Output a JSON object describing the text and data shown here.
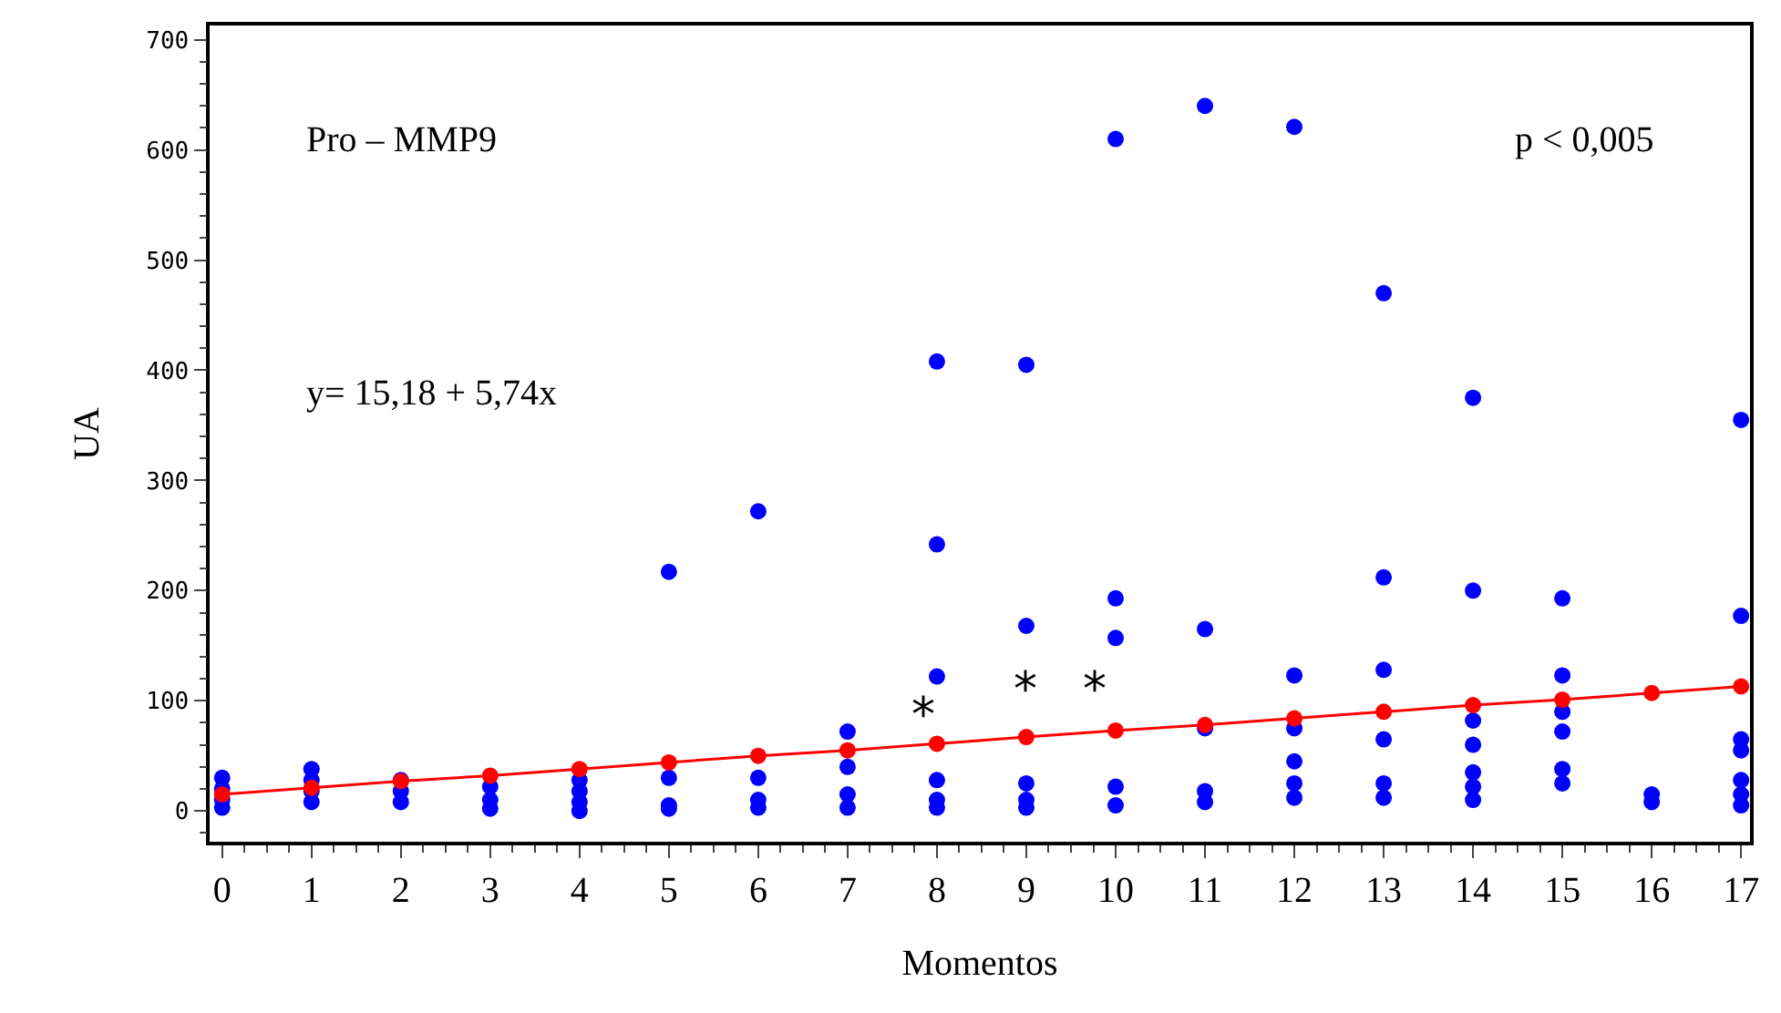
{
  "chart_data": {
    "type": "scatter",
    "xlabel": "Momentos",
    "ylabel": "UA",
    "xlim": [
      -0.14,
      17.1
    ],
    "ylim": [
      -28,
      713
    ],
    "xticks": [
      0,
      1,
      2,
      3,
      4,
      5,
      6,
      7,
      8,
      9,
      10,
      11,
      12,
      13,
      14,
      15,
      16,
      17
    ],
    "yticks": [
      0,
      100,
      200,
      300,
      400,
      500,
      600,
      700
    ],
    "grid": false,
    "marker": "circle",
    "series": [
      {
        "color": "#0000ff",
        "x": [
          0,
          0,
          0,
          0,
          1,
          1,
          1,
          1,
          2,
          2,
          2,
          3,
          3,
          3,
          4,
          4,
          4,
          4,
          5,
          5,
          5,
          5,
          6,
          6,
          6,
          6,
          7,
          7,
          7,
          7,
          8,
          8,
          8,
          8,
          8,
          8,
          9,
          9,
          9,
          9,
          9,
          10,
          10,
          10,
          10,
          10,
          11,
          11,
          11,
          11,
          11,
          12,
          12,
          12,
          12,
          12,
          12,
          13,
          13,
          13,
          13,
          13,
          13,
          14,
          14,
          14,
          14,
          14,
          14,
          14,
          15,
          15,
          15,
          15,
          15,
          15,
          16,
          16,
          17,
          17,
          17,
          17,
          17,
          17,
          17
        ],
        "values": [
          30,
          20,
          10,
          3,
          38,
          28,
          18,
          8,
          28,
          18,
          8,
          22,
          10,
          2,
          28,
          18,
          8,
          0,
          217,
          30,
          5,
          2,
          272,
          30,
          10,
          3,
          72,
          40,
          15,
          3,
          408,
          242,
          122,
          28,
          10,
          3,
          405,
          168,
          25,
          10,
          3,
          610,
          193,
          157,
          22,
          5,
          640,
          165,
          75,
          18,
          8,
          621,
          123,
          75,
          45,
          25,
          12,
          470,
          212,
          128,
          65,
          25,
          12,
          375,
          200,
          82,
          60,
          35,
          22,
          10,
          193,
          123,
          90,
          72,
          38,
          25,
          15,
          8,
          355,
          177,
          65,
          55,
          28,
          15,
          5
        ]
      },
      {
        "type": "line",
        "color": "#ff0000",
        "marker": "circle",
        "line_style": "solid",
        "x": [
          0,
          1,
          2,
          3,
          4,
          5,
          6,
          7,
          8,
          9,
          10,
          11,
          12,
          13,
          14,
          15,
          16,
          17
        ],
        "values": [
          15,
          21,
          27,
          32,
          38,
          44,
          50,
          55,
          61,
          67,
          73,
          78,
          84,
          90,
          96,
          101,
          107,
          113
        ]
      }
    ],
    "annotations": [
      "Pro – MMP9",
      "y= 15,18 + 5,74x",
      "p < 0,005",
      "*",
      "*",
      "*"
    ]
  }
}
